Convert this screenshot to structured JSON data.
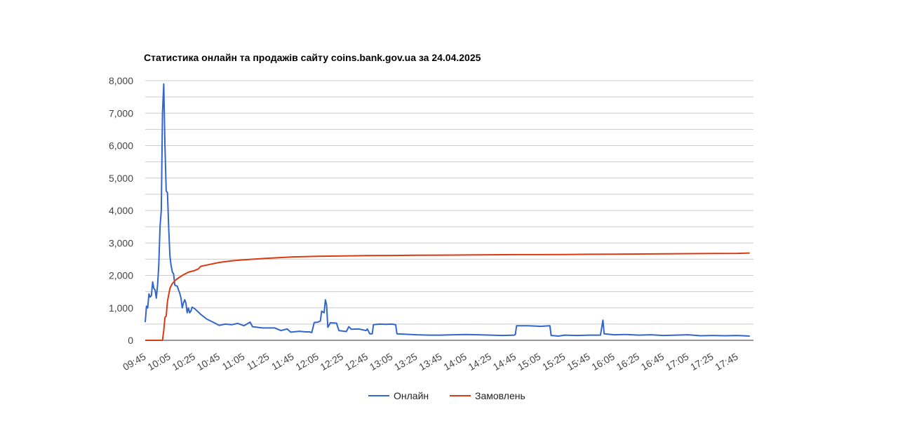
{
  "chart_data": {
    "type": "line",
    "title": "Статистика онлайн та продажів сайту coins.bank.gov.ua за 24.04.2025",
    "xlabel": "",
    "ylabel": "",
    "ylim": [
      0,
      8000
    ],
    "yticks": [
      "0",
      "1,000",
      "2,000",
      "3,000",
      "4,000",
      "5,000",
      "6,000",
      "7,000",
      "8,000"
    ],
    "xticks": [
      "09:45",
      "10:05",
      "10:25",
      "10:45",
      "11:05",
      "11:25",
      "11:45",
      "12:05",
      "12:25",
      "12:45",
      "13:05",
      "13:25",
      "13:45",
      "14:05",
      "14:25",
      "14:45",
      "15:05",
      "15:25",
      "15:45",
      "16:05",
      "16:25",
      "16:45",
      "17:05",
      "17:25",
      "17:45"
    ],
    "grid": true,
    "legend": "bottom",
    "series": [
      {
        "name": "Онлайн",
        "color": "#3366cc",
        "points": [
          [
            "09:45",
            560
          ],
          [
            "09:46",
            1050
          ],
          [
            "09:47",
            1000
          ],
          [
            "09:48",
            1430
          ],
          [
            "09:49",
            1330
          ],
          [
            "09:50",
            1380
          ],
          [
            "09:51",
            1800
          ],
          [
            "09:52",
            1600
          ],
          [
            "09:53",
            1550
          ],
          [
            "09:54",
            1300
          ],
          [
            "09:55",
            1700
          ],
          [
            "09:56",
            2300
          ],
          [
            "09:57",
            3500
          ],
          [
            "09:58",
            4000
          ],
          [
            "09:59",
            7000
          ],
          [
            "10:00",
            7900
          ],
          [
            "10:01",
            6000
          ],
          [
            "10:02",
            4600
          ],
          [
            "10:03",
            4550
          ],
          [
            "10:04",
            3500
          ],
          [
            "10:05",
            2600
          ],
          [
            "10:06",
            2300
          ],
          [
            "10:07",
            2100
          ],
          [
            "10:08",
            2050
          ],
          [
            "10:09",
            1700
          ],
          [
            "10:10",
            1680
          ],
          [
            "10:11",
            1670
          ],
          [
            "10:12",
            1550
          ],
          [
            "10:13",
            1450
          ],
          [
            "10:14",
            1300
          ],
          [
            "10:15",
            1000
          ],
          [
            "10:16",
            1150
          ],
          [
            "10:17",
            1250
          ],
          [
            "10:18",
            1150
          ],
          [
            "10:19",
            850
          ],
          [
            "10:20",
            1000
          ],
          [
            "10:21",
            850
          ],
          [
            "10:22",
            900
          ],
          [
            "10:23",
            1020
          ],
          [
            "10:25",
            980
          ],
          [
            "10:30",
            800
          ],
          [
            "10:35",
            650
          ],
          [
            "10:40",
            560
          ],
          [
            "10:45",
            460
          ],
          [
            "10:50",
            500
          ],
          [
            "10:55",
            480
          ],
          [
            "11:00",
            520
          ],
          [
            "11:05",
            450
          ],
          [
            "11:10",
            560
          ],
          [
            "11:12",
            420
          ],
          [
            "11:20",
            380
          ],
          [
            "11:30",
            380
          ],
          [
            "11:35",
            300
          ],
          [
            "11:40",
            350
          ],
          [
            "11:43",
            250
          ],
          [
            "11:50",
            280
          ],
          [
            "11:55",
            260
          ],
          [
            "11:58",
            260
          ],
          [
            "12:00",
            240
          ],
          [
            "12:02",
            550
          ],
          [
            "12:05",
            560
          ],
          [
            "12:07",
            600
          ],
          [
            "12:08",
            900
          ],
          [
            "12:10",
            850
          ],
          [
            "12:11",
            1250
          ],
          [
            "12:12",
            1100
          ],
          [
            "12:13",
            400
          ],
          [
            "12:15",
            540
          ],
          [
            "12:20",
            530
          ],
          [
            "12:22",
            300
          ],
          [
            "12:28",
            270
          ],
          [
            "12:30",
            420
          ],
          [
            "12:32",
            340
          ],
          [
            "12:38",
            350
          ],
          [
            "12:44",
            300
          ],
          [
            "12:45",
            350
          ],
          [
            "12:47",
            200
          ],
          [
            "12:49",
            200
          ],
          [
            "12:50",
            480
          ],
          [
            "12:55",
            500
          ],
          [
            "13:00",
            490
          ],
          [
            "13:05",
            500
          ],
          [
            "13:08",
            480
          ],
          [
            "13:09",
            200
          ],
          [
            "13:15",
            190
          ],
          [
            "13:25",
            170
          ],
          [
            "13:35",
            160
          ],
          [
            "13:45",
            160
          ],
          [
            "13:55",
            170
          ],
          [
            "14:05",
            180
          ],
          [
            "14:15",
            170
          ],
          [
            "14:25",
            160
          ],
          [
            "14:35",
            150
          ],
          [
            "14:44",
            160
          ],
          [
            "14:45",
            180
          ],
          [
            "14:46",
            450
          ],
          [
            "14:55",
            450
          ],
          [
            "15:00",
            440
          ],
          [
            "15:05",
            430
          ],
          [
            "15:13",
            450
          ],
          [
            "15:14",
            150
          ],
          [
            "15:20",
            130
          ],
          [
            "15:25",
            160
          ],
          [
            "15:35",
            150
          ],
          [
            "15:45",
            160
          ],
          [
            "15:54",
            160
          ],
          [
            "15:56",
            620
          ],
          [
            "15:57",
            200
          ],
          [
            "16:05",
            170
          ],
          [
            "16:15",
            180
          ],
          [
            "16:25",
            160
          ],
          [
            "16:35",
            170
          ],
          [
            "16:45",
            150
          ],
          [
            "16:55",
            160
          ],
          [
            "17:05",
            170
          ],
          [
            "17:15",
            140
          ],
          [
            "17:25",
            150
          ],
          [
            "17:35",
            140
          ],
          [
            "17:45",
            150
          ],
          [
            "17:55",
            130
          ]
        ]
      },
      {
        "name": "Замовлень",
        "color": "#dc3912",
        "points": [
          [
            "09:45",
            0
          ],
          [
            "09:59",
            0
          ],
          [
            "10:00",
            300
          ],
          [
            "10:01",
            700
          ],
          [
            "10:02",
            750
          ],
          [
            "10:03",
            1200
          ],
          [
            "10:04",
            1400
          ],
          [
            "10:05",
            1600
          ],
          [
            "10:07",
            1750
          ],
          [
            "10:10",
            1870
          ],
          [
            "10:15",
            2000
          ],
          [
            "10:20",
            2100
          ],
          [
            "10:25",
            2150
          ],
          [
            "10:28",
            2200
          ],
          [
            "10:30",
            2280
          ],
          [
            "10:35",
            2320
          ],
          [
            "10:45",
            2400
          ],
          [
            "10:55",
            2450
          ],
          [
            "11:05",
            2480
          ],
          [
            "11:25",
            2530
          ],
          [
            "11:45",
            2570
          ],
          [
            "12:05",
            2590
          ],
          [
            "12:25",
            2600
          ],
          [
            "12:45",
            2610
          ],
          [
            "13:05",
            2615
          ],
          [
            "13:25",
            2620
          ],
          [
            "13:45",
            2625
          ],
          [
            "14:05",
            2630
          ],
          [
            "14:25",
            2635
          ],
          [
            "14:45",
            2640
          ],
          [
            "15:05",
            2640
          ],
          [
            "15:25",
            2645
          ],
          [
            "15:45",
            2650
          ],
          [
            "16:05",
            2655
          ],
          [
            "16:25",
            2660
          ],
          [
            "16:45",
            2665
          ],
          [
            "17:05",
            2670
          ],
          [
            "17:25",
            2675
          ],
          [
            "17:45",
            2680
          ],
          [
            "17:55",
            2690
          ]
        ]
      }
    ]
  }
}
